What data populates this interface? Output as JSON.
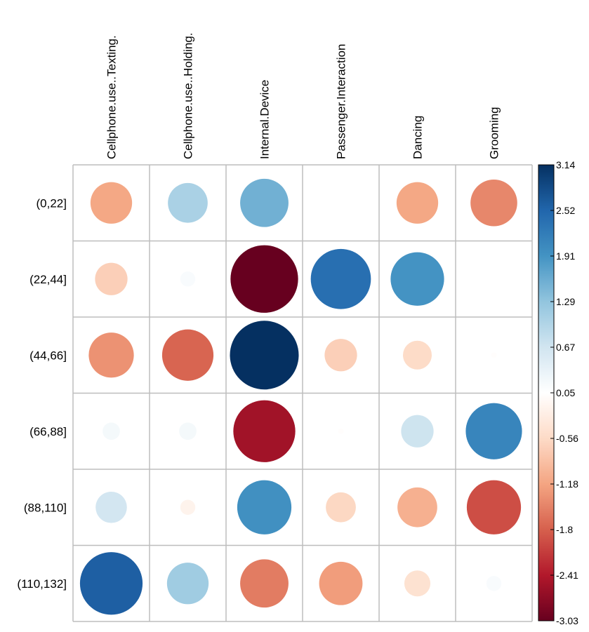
{
  "chart_data": {
    "type": "heatmap",
    "glyph": "circle",
    "columns": [
      "Cellphone.use..Texting.",
      "Cellphone.use..Holding.",
      "Internal.Device",
      "Passenger.Interaction",
      "Dancing",
      "Grooming"
    ],
    "rows": [
      "(0,22]",
      "(22,44]",
      "(44,66]",
      "(66,88]",
      "(88,110]",
      "(110,132]"
    ],
    "values": [
      [
        -1.15,
        1.05,
        1.55,
        0.05,
        -1.15,
        -1.45
      ],
      [
        -0.7,
        0.15,
        -3.03,
        2.4,
        1.9,
        0.05
      ],
      [
        -1.35,
        -1.75,
        3.14,
        -0.7,
        -0.55,
        0.02
      ],
      [
        0.2,
        0.2,
        -2.55,
        0.02,
        0.7,
        2.1
      ],
      [
        0.65,
        -0.15,
        1.95,
        -0.6,
        -1.05,
        -1.95
      ],
      [
        2.6,
        1.15,
        -1.55,
        -1.25,
        -0.45,
        0.15
      ]
    ],
    "colorbar": {
      "min": -3.03,
      "max": 3.14,
      "tick_labels": [
        "3.14",
        "2.52",
        "1.91",
        "1.29",
        "0.67",
        "0.05",
        "-0.56",
        "-1.18",
        "-1.8",
        "-2.41",
        "-3.03"
      ]
    },
    "palette": {
      "negative_end": "#67001f",
      "neg_2": "#b2182b",
      "neg_3": "#d6604d",
      "neg_4": "#f4a582",
      "neg_5": "#fddbc7",
      "center": "#ffffff",
      "pos_5": "#d1e5f0",
      "pos_4": "#92c5de",
      "pos_3": "#4393c3",
      "pos_2": "#2166ac",
      "positive_end": "#053061",
      "grid_line": "#bdbdbd"
    },
    "title": "",
    "xlabel": "",
    "ylabel": ""
  }
}
